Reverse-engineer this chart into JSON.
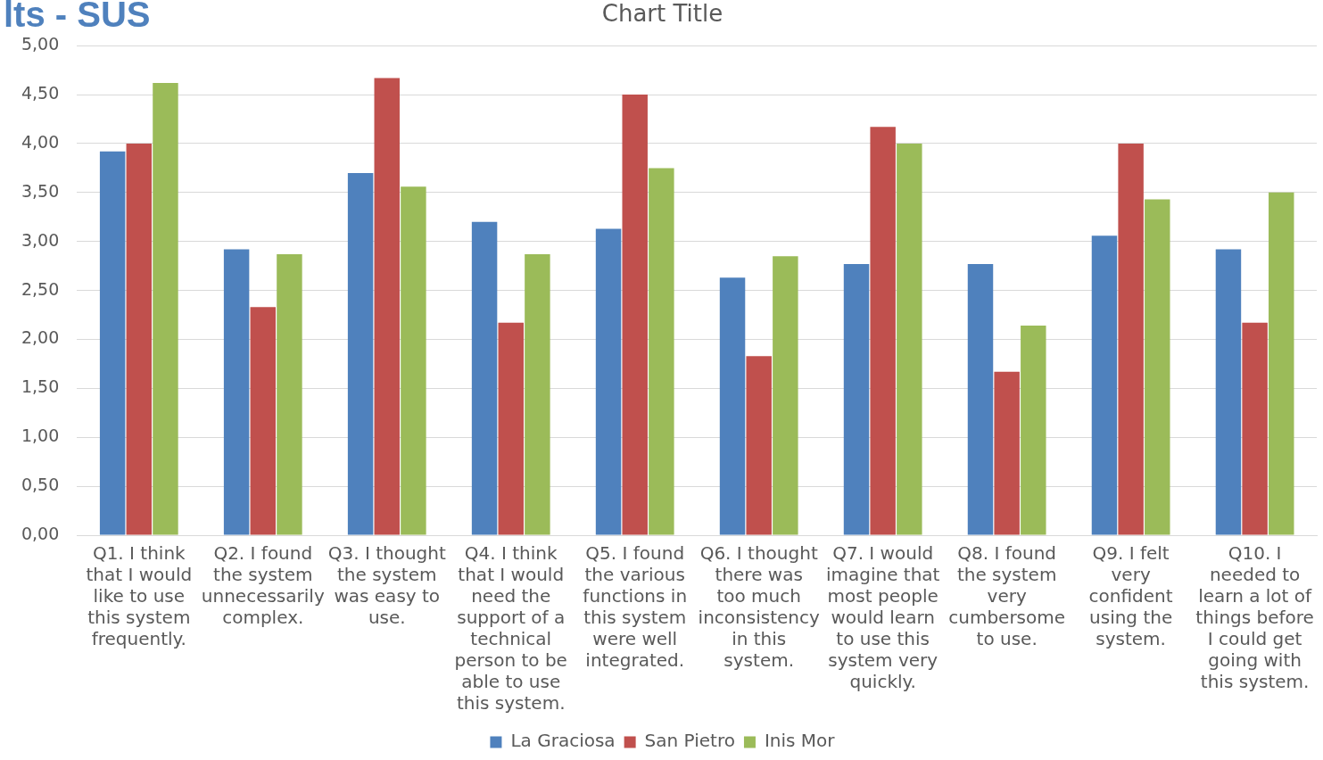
{
  "chart_data": {
    "type": "bar",
    "title": "Chart Title",
    "annotations": [
      "lts - SUS"
    ],
    "categories": [
      "Q1. I think that I would like to use this system frequently.",
      "Q2. I found the system unnecessarily complex.",
      "Q3. I thought the system was easy to use.",
      "Q4. I think that I would need the support of a technical person to be able to use this system.",
      "Q5. I found the various functions in this system were well integrated.",
      "Q6. I thought there was too much inconsistency in this system.",
      "Q7. I would imagine that most people would learn to use this system very quickly.",
      "Q8. I found the system very cumbersome to use.",
      "Q9. I felt very confident using the system.",
      "Q10. I needed to learn a lot of things before I could get going with this system."
    ],
    "series": [
      {
        "name": "La Graciosa",
        "color": "#4f81bd",
        "values": [
          3.92,
          2.92,
          3.7,
          3.2,
          3.13,
          2.63,
          2.77,
          2.77,
          3.06,
          2.92
        ]
      },
      {
        "name": "San Pietro",
        "color": "#c0504d",
        "values": [
          4.0,
          2.33,
          4.67,
          2.17,
          4.5,
          1.83,
          4.17,
          1.67,
          4.0,
          2.17
        ]
      },
      {
        "name": "Inis Mor",
        "color": "#9bbb59",
        "values": [
          4.62,
          2.87,
          3.56,
          2.87,
          3.75,
          2.85,
          4.0,
          2.14,
          3.43,
          3.5
        ]
      }
    ],
    "ylim": [
      0,
      5
    ],
    "yticks": [
      {
        "value": 0,
        "label": "0,00"
      },
      {
        "value": 0.5,
        "label": "0,50"
      },
      {
        "value": 1,
        "label": "1,00"
      },
      {
        "value": 1.5,
        "label": "1,50"
      },
      {
        "value": 2,
        "label": "2,00"
      },
      {
        "value": 2.5,
        "label": "2,50"
      },
      {
        "value": 3,
        "label": "3,00"
      },
      {
        "value": 3.5,
        "label": "3,50"
      },
      {
        "value": 4,
        "label": "4,00"
      },
      {
        "value": 4.5,
        "label": "4,50"
      },
      {
        "value": 5,
        "label": "5,00"
      }
    ],
    "grid": "y",
    "legend": "bottom"
  }
}
